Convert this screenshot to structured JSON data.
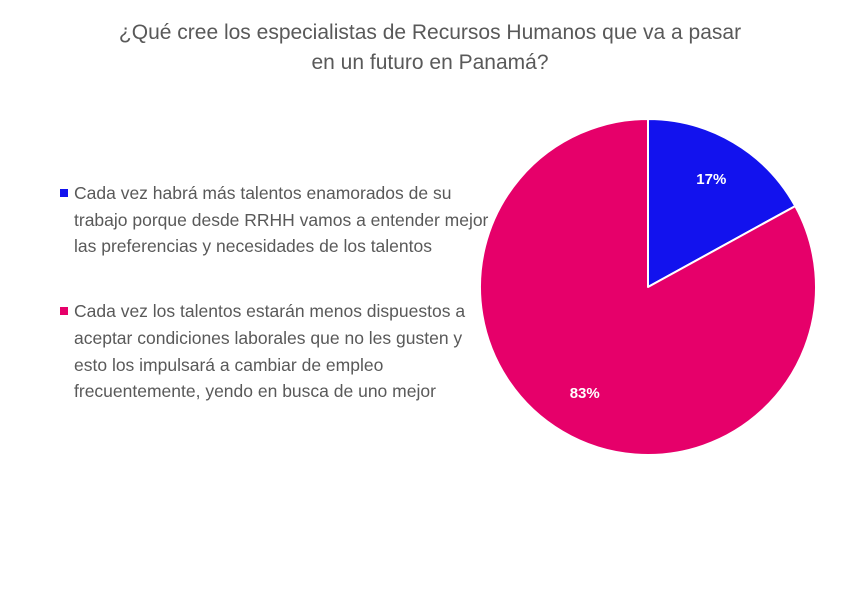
{
  "chart_data": {
    "type": "pie",
    "title": "¿Qué cree los especialistas de Recursos Humanos  que va a pasar en un futuro en Panamá?",
    "title_lines": [
      "¿Qué cree los especialistas de Recursos Humanos  que va a pasar",
      "en un futuro en Panamá?"
    ],
    "legend_position": "left",
    "slices": [
      {
        "label": "Cada vez habrá más talentos enamorados de su trabajo porque desde RRHH vamos a entender mejor las preferencias y necesidades de los talentos",
        "value": 17,
        "display": "17%",
        "color": "#1212ee"
      },
      {
        "label": "Cada vez los talentos estarán menos dispuestos a aceptar condiciones laborales que no les gusten y esto los impulsará a cambiar de empleo frecuentemente, yendo en busca de uno mejor",
        "value": 83,
        "display": "83%",
        "color": "#e6006a"
      }
    ]
  }
}
